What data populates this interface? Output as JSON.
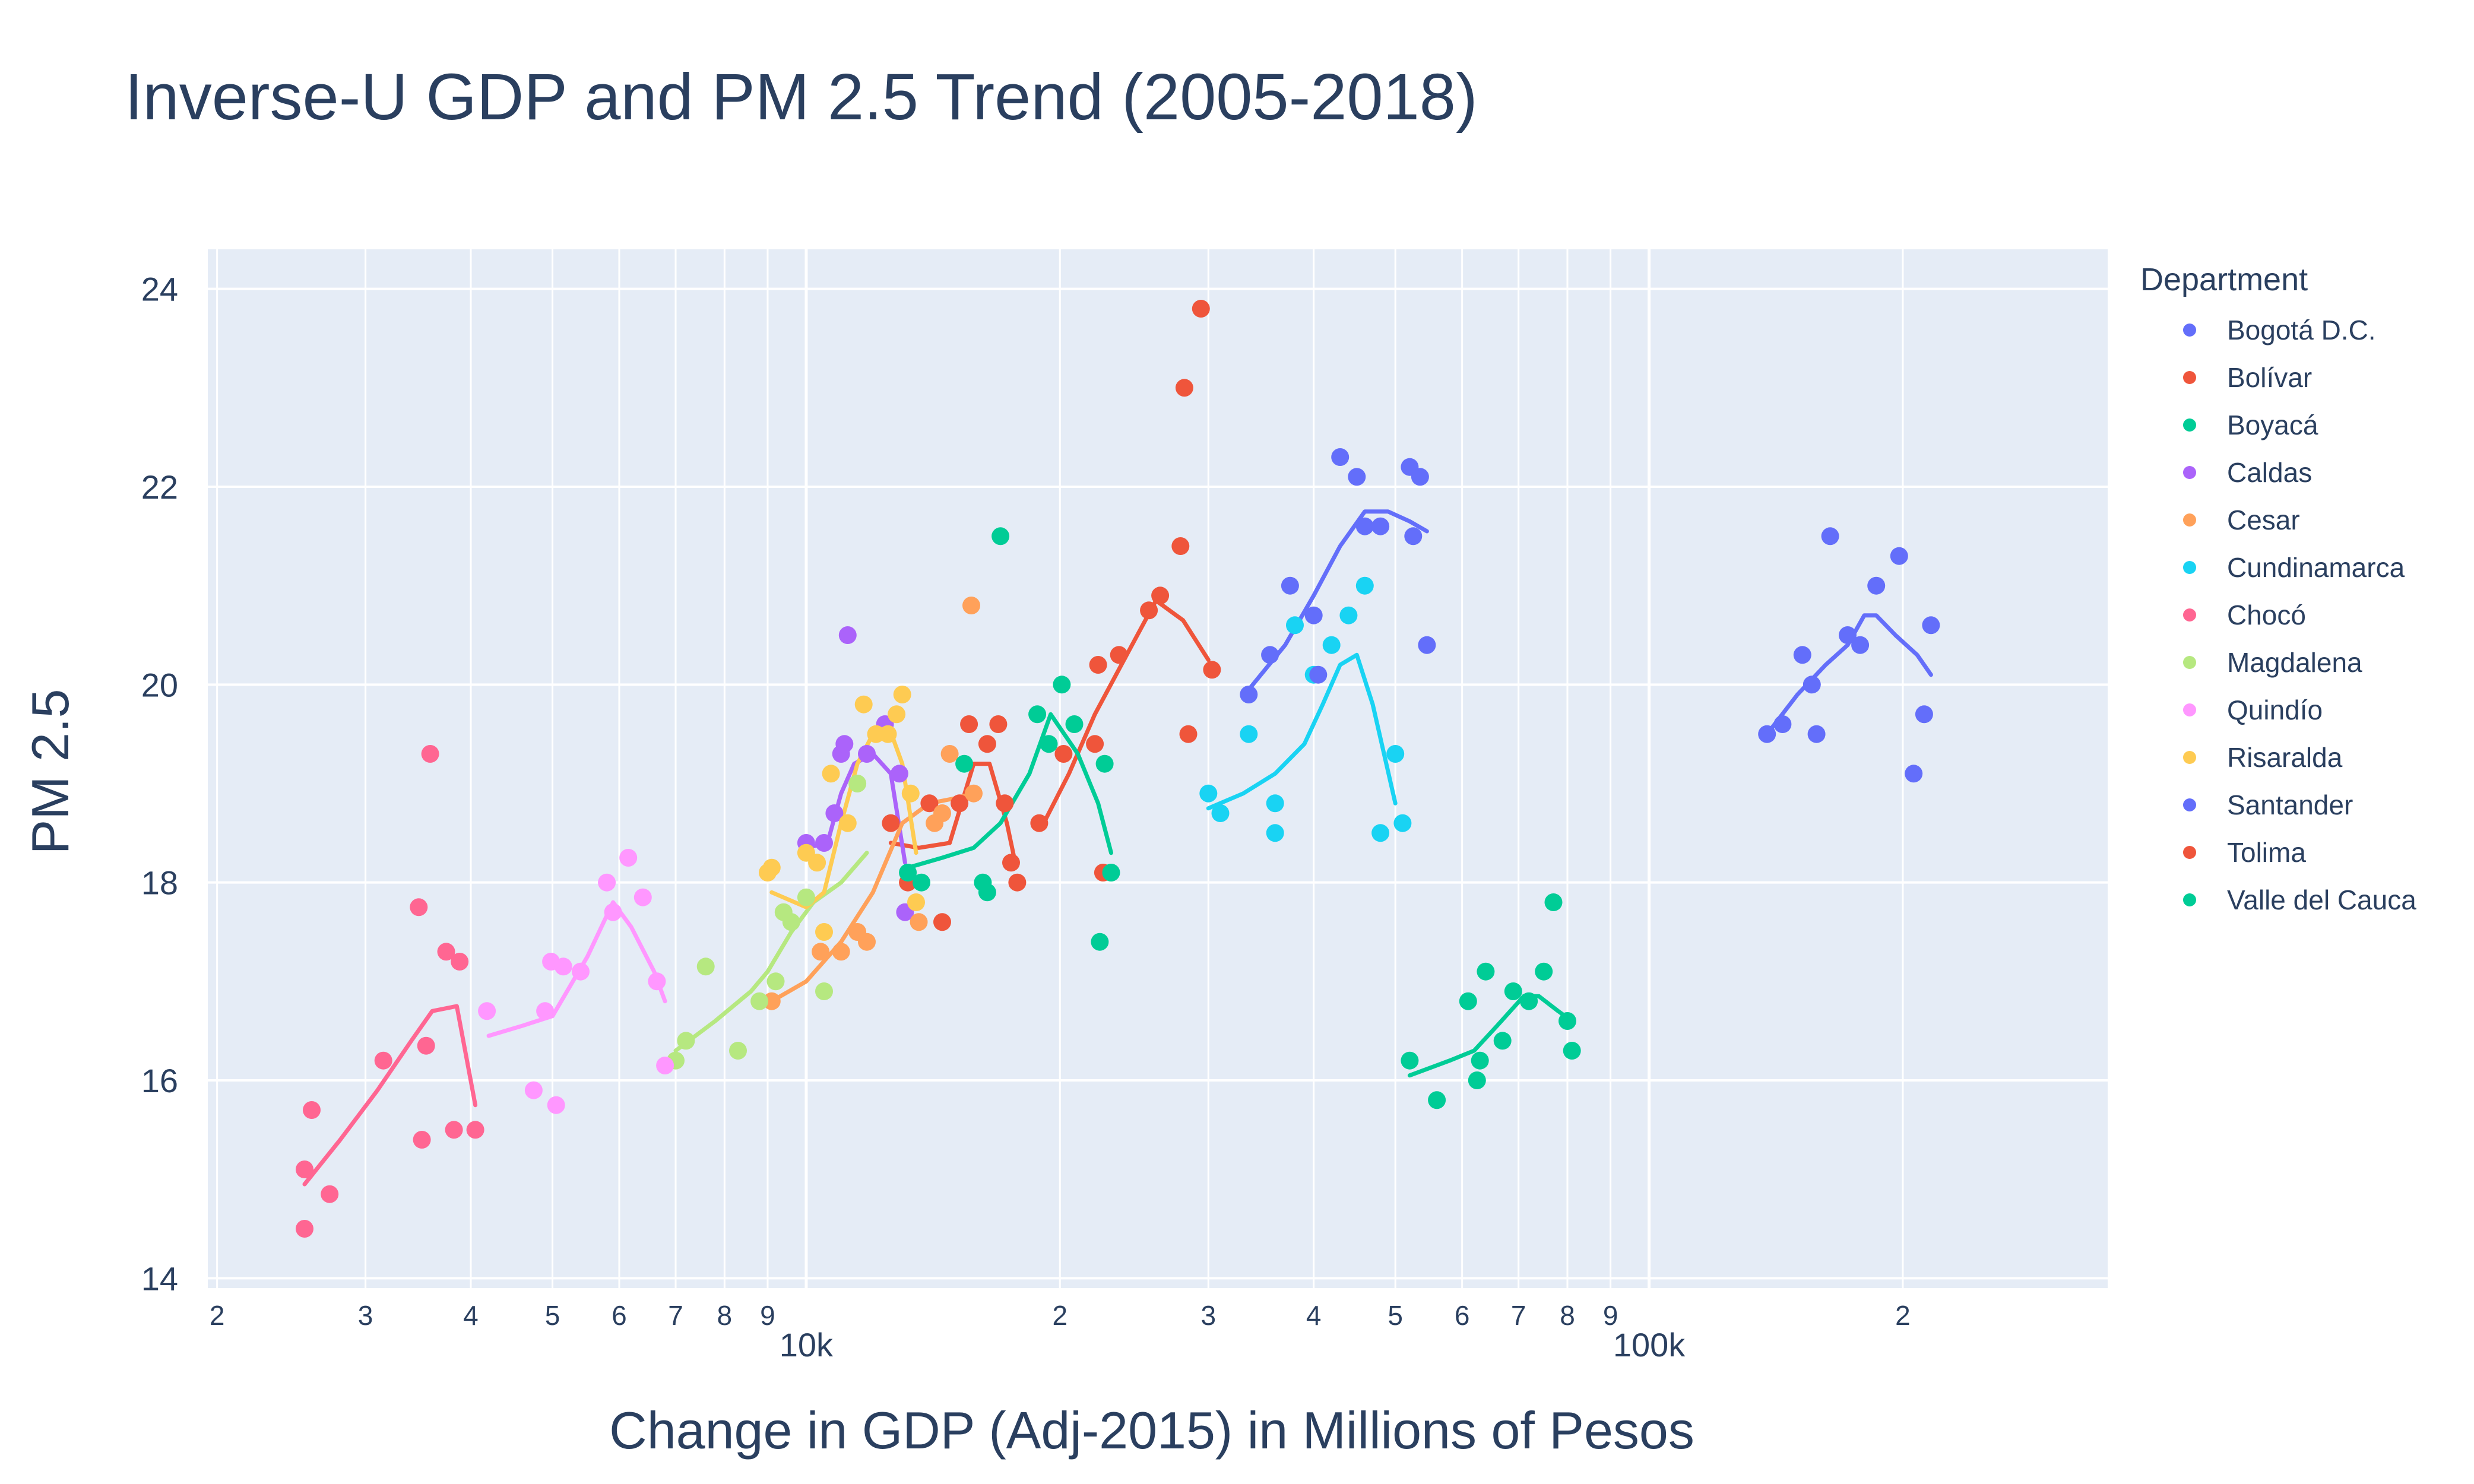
{
  "chart_data": {
    "type": "scatter",
    "title": "Inverse-U GDP and PM 2.5 Trend (2005-2018)",
    "xlabel": "Change in GDP (Adj-2015) in Millions of Pesos",
    "ylabel": "PM 2.5",
    "xscale": "log",
    "xlim": [
      1950,
      350000
    ],
    "ylim": [
      13.9,
      24.4
    ],
    "grid": true,
    "legend_title": "Department",
    "legend_position": "right",
    "x_ticks": [
      {
        "value": 2000,
        "label": "2"
      },
      {
        "value": 3000,
        "label": "3"
      },
      {
        "value": 4000,
        "label": "4"
      },
      {
        "value": 5000,
        "label": "5"
      },
      {
        "value": 6000,
        "label": "6"
      },
      {
        "value": 7000,
        "label": "7"
      },
      {
        "value": 8000,
        "label": "8"
      },
      {
        "value": 9000,
        "label": "9"
      },
      {
        "value": 10000,
        "label": "10k"
      },
      {
        "value": 20000,
        "label": "2"
      },
      {
        "value": 30000,
        "label": "3"
      },
      {
        "value": 40000,
        "label": "4"
      },
      {
        "value": 50000,
        "label": "5"
      },
      {
        "value": 60000,
        "label": "6"
      },
      {
        "value": 70000,
        "label": "7"
      },
      {
        "value": 80000,
        "label": "8"
      },
      {
        "value": 90000,
        "label": "9"
      },
      {
        "value": 100000,
        "label": "100k"
      },
      {
        "value": 200000,
        "label": "2"
      }
    ],
    "y_ticks": [
      {
        "value": 14,
        "label": "14"
      },
      {
        "value": 16,
        "label": "16"
      },
      {
        "value": 18,
        "label": "18"
      },
      {
        "value": 20,
        "label": "20"
      },
      {
        "value": 22,
        "label": "22"
      },
      {
        "value": 24,
        "label": "24"
      }
    ],
    "series": [
      {
        "name": "Bogotá D.C.",
        "color": "#636efa",
        "points": [
          [
            138000,
            19.5
          ],
          [
            144000,
            19.6
          ],
          [
            152000,
            20.3
          ],
          [
            156000,
            20.0
          ],
          [
            158000,
            19.5
          ],
          [
            164000,
            21.5
          ],
          [
            172000,
            20.5
          ],
          [
            178000,
            20.4
          ],
          [
            186000,
            21.0
          ],
          [
            198000,
            21.3
          ],
          [
            206000,
            19.1
          ],
          [
            212000,
            19.7
          ],
          [
            216000,
            20.6
          ]
        ],
        "trend": [
          [
            138000,
            19.5
          ],
          [
            150000,
            19.9
          ],
          [
            162000,
            20.2
          ],
          [
            172000,
            20.4
          ],
          [
            180000,
            20.7
          ],
          [
            186000,
            20.7
          ],
          [
            196000,
            20.5
          ],
          [
            208000,
            20.3
          ],
          [
            216000,
            20.1
          ]
        ]
      },
      {
        "name": "Bolívar",
        "color": "#EF553B",
        "points": [
          [
            12600,
            18.6
          ],
          [
            13200,
            18.0
          ],
          [
            14000,
            18.8
          ],
          [
            14500,
            17.6
          ],
          [
            15200,
            18.8
          ],
          [
            15600,
            19.6
          ],
          [
            16400,
            19.4
          ],
          [
            16900,
            19.6
          ],
          [
            17200,
            18.8
          ],
          [
            17500,
            18.2
          ],
          [
            17800,
            18.0
          ]
        ],
        "trend": [
          [
            12600,
            18.4
          ],
          [
            13600,
            18.35
          ],
          [
            14800,
            18.4
          ],
          [
            15800,
            19.2
          ],
          [
            16500,
            19.2
          ],
          [
            17300,
            18.6
          ],
          [
            17700,
            18.2
          ]
        ]
      },
      {
        "name": "Boyacá",
        "color": "#00cc96",
        "points": [
          [
            52000,
            16.2
          ],
          [
            56000,
            15.8
          ],
          [
            61000,
            16.8
          ],
          [
            62500,
            16.0
          ],
          [
            63000,
            16.2
          ],
          [
            64000,
            17.1
          ],
          [
            67000,
            16.4
          ],
          [
            69000,
            16.9
          ],
          [
            72000,
            16.8
          ],
          [
            75000,
            17.1
          ],
          [
            77000,
            17.8
          ],
          [
            80000,
            16.6
          ],
          [
            81000,
            16.3
          ]
        ],
        "trend": [
          [
            52000,
            16.05
          ],
          [
            58000,
            16.2
          ],
          [
            62000,
            16.3
          ],
          [
            66000,
            16.55
          ],
          [
            71000,
            16.85
          ],
          [
            74000,
            16.85
          ],
          [
            78000,
            16.7
          ],
          [
            81000,
            16.6
          ]
        ]
      },
      {
        "name": "Caldas",
        "color": "#ab63fa",
        "points": [
          [
            10000,
            18.4
          ],
          [
            10500,
            18.4
          ],
          [
            10800,
            18.7
          ],
          [
            11000,
            19.3
          ],
          [
            11100,
            19.4
          ],
          [
            11200,
            20.5
          ],
          [
            11800,
            19.3
          ],
          [
            12400,
            19.6
          ],
          [
            12900,
            19.1
          ],
          [
            13100,
            17.7
          ]
        ],
        "trend": [
          [
            10000,
            18.35
          ],
          [
            10600,
            18.4
          ],
          [
            11000,
            18.9
          ],
          [
            11400,
            19.2
          ],
          [
            12000,
            19.3
          ],
          [
            12600,
            19.1
          ],
          [
            13100,
            18.2
          ]
        ]
      },
      {
        "name": "Cesar",
        "color": "#FFA15A",
        "points": [
          [
            9100,
            16.8
          ],
          [
            10400,
            17.3
          ],
          [
            11000,
            17.3
          ],
          [
            11500,
            17.5
          ],
          [
            11800,
            17.4
          ],
          [
            13600,
            17.6
          ],
          [
            14200,
            18.6
          ],
          [
            14500,
            18.7
          ],
          [
            14800,
            19.3
          ],
          [
            15800,
            18.9
          ],
          [
            15700,
            20.8
          ]
        ],
        "trend": [
          [
            9100,
            16.8
          ],
          [
            10000,
            17.0
          ],
          [
            11000,
            17.4
          ],
          [
            12000,
            17.9
          ],
          [
            13000,
            18.6
          ],
          [
            14000,
            18.8
          ],
          [
            15000,
            18.85
          ],
          [
            15800,
            18.9
          ]
        ]
      },
      {
        "name": "Cundinamarca",
        "color": "#19d3f3",
        "points": [
          [
            30000,
            18.9
          ],
          [
            31000,
            18.7
          ],
          [
            33500,
            19.5
          ],
          [
            36000,
            18.8
          ],
          [
            36000,
            18.5
          ],
          [
            38000,
            20.6
          ],
          [
            40000,
            20.1
          ],
          [
            42000,
            20.4
          ],
          [
            44000,
            20.7
          ],
          [
            46000,
            21.0
          ],
          [
            48000,
            18.5
          ],
          [
            50000,
            19.3
          ],
          [
            51000,
            18.6
          ]
        ],
        "trend": [
          [
            30000,
            18.75
          ],
          [
            33000,
            18.9
          ],
          [
            36000,
            19.1
          ],
          [
            39000,
            19.4
          ],
          [
            41000,
            19.8
          ],
          [
            43000,
            20.2
          ],
          [
            45000,
            20.3
          ],
          [
            47000,
            19.8
          ],
          [
            50000,
            18.8
          ]
        ]
      },
      {
        "name": "Chocó",
        "color": "#FF6692",
        "points": [
          [
            2540,
            15.1
          ],
          [
            2540,
            14.5
          ],
          [
            2590,
            15.7
          ],
          [
            2720,
            14.85
          ],
          [
            3150,
            16.2
          ],
          [
            3500,
            15.4
          ],
          [
            3540,
            16.35
          ],
          [
            3580,
            19.3
          ],
          [
            3470,
            17.75
          ],
          [
            3740,
            17.3
          ],
          [
            3820,
            15.5
          ],
          [
            3880,
            17.2
          ],
          [
            4050,
            15.5
          ]
        ],
        "trend": [
          [
            2540,
            14.95
          ],
          [
            2800,
            15.4
          ],
          [
            3100,
            15.9
          ],
          [
            3400,
            16.4
          ],
          [
            3600,
            16.7
          ],
          [
            3850,
            16.75
          ],
          [
            4050,
            15.75
          ]
        ]
      },
      {
        "name": "Magdalena",
        "color": "#B6E880",
        "points": [
          [
            7000,
            16.2
          ],
          [
            7200,
            16.4
          ],
          [
            7600,
            17.15
          ],
          [
            8300,
            16.3
          ],
          [
            8800,
            16.8
          ],
          [
            9200,
            17.0
          ],
          [
            9400,
            17.7
          ],
          [
            9600,
            17.6
          ],
          [
            10000,
            17.85
          ],
          [
            10500,
            16.9
          ],
          [
            11500,
            19.0
          ]
        ],
        "trend": [
          [
            7000,
            16.3
          ],
          [
            7800,
            16.6
          ],
          [
            8600,
            16.9
          ],
          [
            9000,
            17.1
          ],
          [
            9600,
            17.5
          ],
          [
            10200,
            17.8
          ],
          [
            11000,
            18.0
          ],
          [
            11800,
            18.3
          ]
        ]
      },
      {
        "name": "Quindío",
        "color": "#FF97FF",
        "points": [
          [
            4180,
            16.7
          ],
          [
            4750,
            15.9
          ],
          [
            4900,
            16.7
          ],
          [
            4980,
            17.2
          ],
          [
            5050,
            15.75
          ],
          [
            5150,
            17.15
          ],
          [
            5400,
            17.1
          ],
          [
            5800,
            18.0
          ],
          [
            5900,
            17.7
          ],
          [
            6150,
            18.25
          ],
          [
            6400,
            17.85
          ],
          [
            6650,
            17.0
          ],
          [
            6800,
            16.15
          ]
        ],
        "trend": [
          [
            4200,
            16.45
          ],
          [
            4600,
            16.55
          ],
          [
            5000,
            16.65
          ],
          [
            5500,
            17.25
          ],
          [
            5900,
            17.8
          ],
          [
            6200,
            17.55
          ],
          [
            6600,
            17.1
          ],
          [
            6800,
            16.8
          ]
        ]
      },
      {
        "name": "Risaralda",
        "color": "#FECB52",
        "points": [
          [
            9000,
            18.1
          ],
          [
            9100,
            18.15
          ],
          [
            10000,
            18.3
          ],
          [
            10300,
            18.2
          ],
          [
            10500,
            17.5
          ],
          [
            10700,
            19.1
          ],
          [
            11200,
            18.6
          ],
          [
            11700,
            19.8
          ],
          [
            12100,
            19.5
          ],
          [
            12500,
            19.5
          ],
          [
            12800,
            19.7
          ],
          [
            13000,
            19.9
          ],
          [
            13300,
            18.9
          ],
          [
            13500,
            17.8
          ]
        ],
        "trend": [
          [
            9100,
            17.9
          ],
          [
            10000,
            17.75
          ],
          [
            10500,
            17.9
          ],
          [
            11000,
            18.6
          ],
          [
            11500,
            19.2
          ],
          [
            12000,
            19.5
          ],
          [
            12500,
            19.6
          ],
          [
            13000,
            19.2
          ],
          [
            13500,
            18.3
          ]
        ]
      },
      {
        "name": "Santander",
        "color": "#636efa",
        "points": [
          [
            33500,
            19.9
          ],
          [
            35500,
            20.3
          ],
          [
            37500,
            21.0
          ],
          [
            40000,
            20.7
          ],
          [
            40500,
            20.1
          ],
          [
            43000,
            22.3
          ],
          [
            45000,
            22.1
          ],
          [
            46000,
            21.6
          ],
          [
            48000,
            21.6
          ],
          [
            52000,
            22.2
          ],
          [
            52500,
            21.5
          ],
          [
            53500,
            22.1
          ],
          [
            54500,
            20.4
          ]
        ],
        "trend": [
          [
            33500,
            19.95
          ],
          [
            37000,
            20.4
          ],
          [
            40000,
            20.9
          ],
          [
            43000,
            21.4
          ],
          [
            46000,
            21.75
          ],
          [
            49000,
            21.75
          ],
          [
            52000,
            21.65
          ],
          [
            54500,
            21.55
          ]
        ]
      },
      {
        "name": "Tolima",
        "color": "#EF553B",
        "points": [
          [
            18900,
            18.6
          ],
          [
            20200,
            19.3
          ],
          [
            22000,
            19.4
          ],
          [
            22200,
            20.2
          ],
          [
            22500,
            18.1
          ],
          [
            23500,
            20.3
          ],
          [
            25500,
            20.75
          ],
          [
            26300,
            20.9
          ],
          [
            27800,
            21.4
          ],
          [
            28100,
            23.0
          ],
          [
            28400,
            19.5
          ],
          [
            29400,
            23.8
          ],
          [
            30300,
            20.15
          ]
        ],
        "trend": [
          [
            19000,
            18.55
          ],
          [
            20500,
            19.1
          ],
          [
            22000,
            19.7
          ],
          [
            24000,
            20.3
          ],
          [
            26000,
            20.85
          ],
          [
            28000,
            20.65
          ],
          [
            30000,
            20.25
          ]
        ]
      },
      {
        "name": "Valle del Cauca",
        "color": "#00cc96",
        "points": [
          [
            13200,
            18.1
          ],
          [
            13700,
            18.0
          ],
          [
            15400,
            19.2
          ],
          [
            16200,
            18.0
          ],
          [
            16400,
            17.9
          ],
          [
            17000,
            21.5
          ],
          [
            18800,
            19.7
          ],
          [
            19400,
            19.4
          ],
          [
            20100,
            20.0
          ],
          [
            20800,
            19.6
          ],
          [
            22300,
            17.4
          ],
          [
            22600,
            19.2
          ],
          [
            23000,
            18.1
          ]
        ],
        "trend": [
          [
            13200,
            18.15
          ],
          [
            14500,
            18.25
          ],
          [
            15800,
            18.35
          ],
          [
            17000,
            18.6
          ],
          [
            18400,
            19.1
          ],
          [
            19500,
            19.7
          ],
          [
            21000,
            19.3
          ],
          [
            22200,
            18.8
          ],
          [
            23000,
            18.3
          ]
        ]
      }
    ]
  }
}
